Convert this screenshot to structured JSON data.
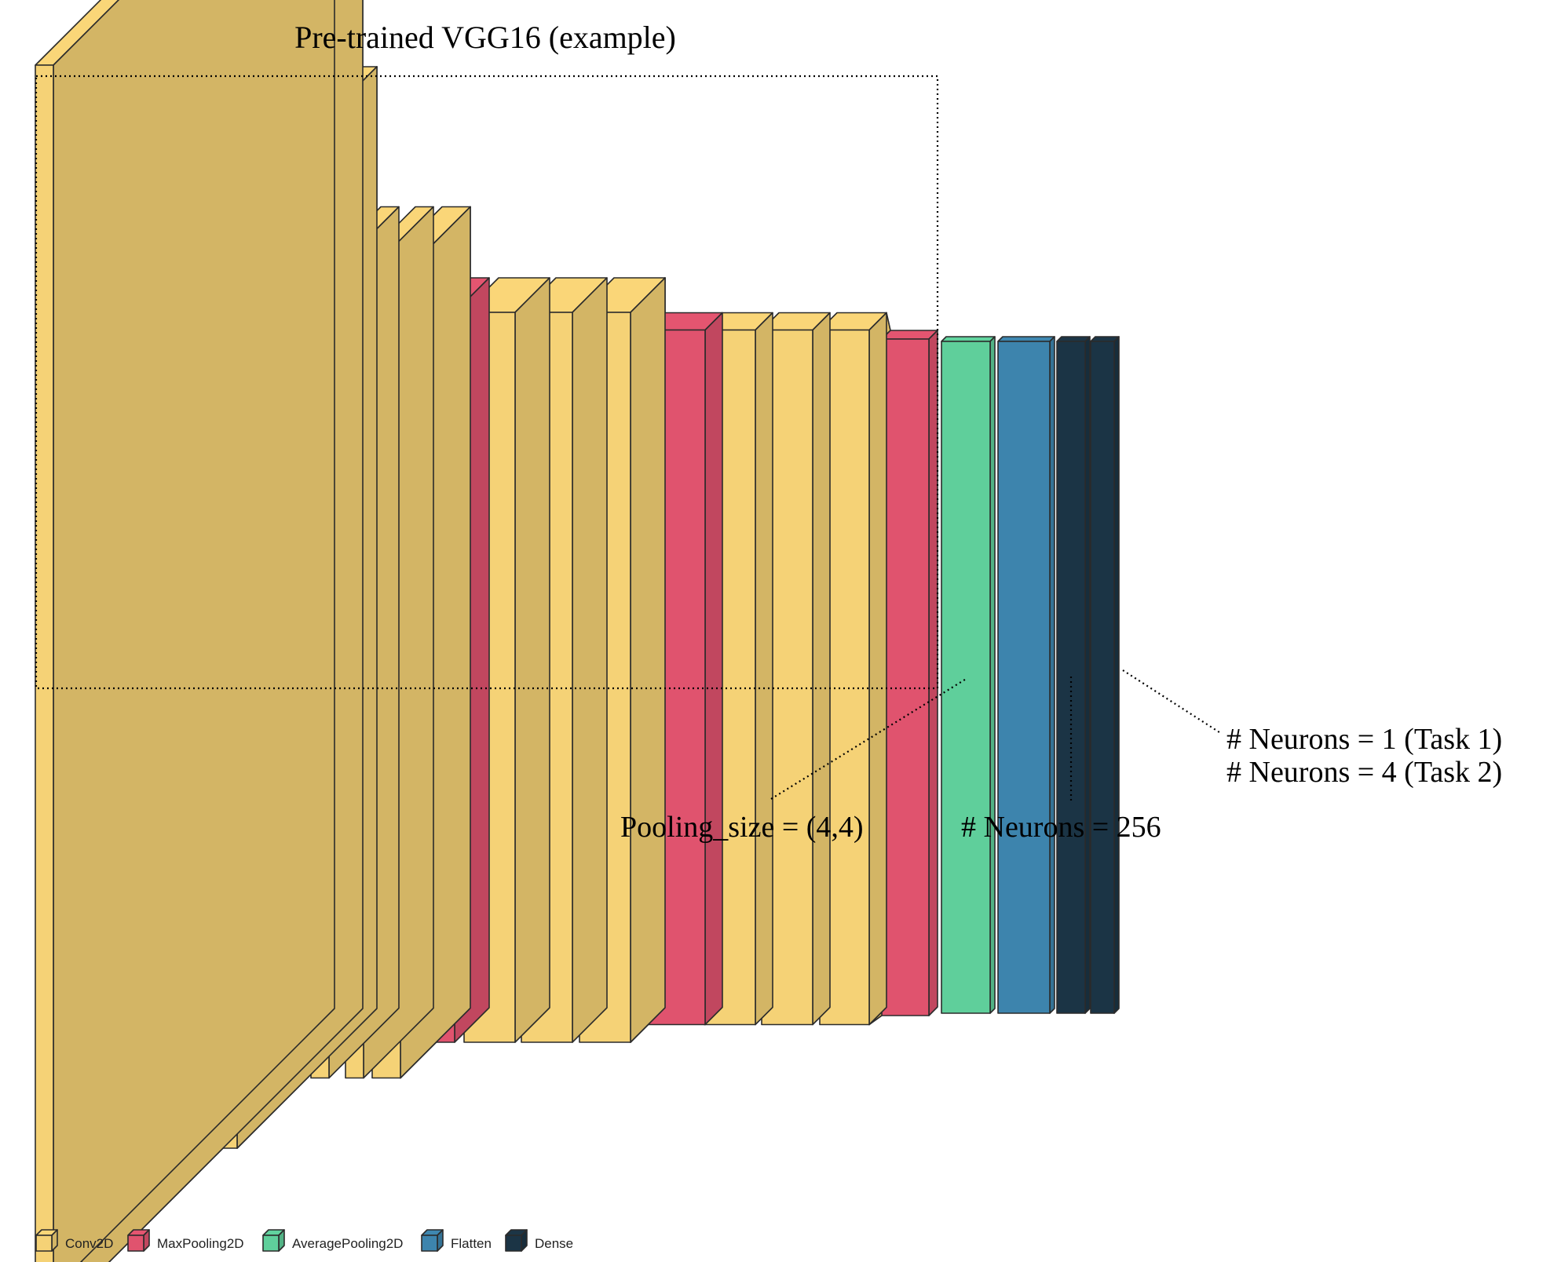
{
  "title": "Pre-trained VGG16 (example)",
  "annotations": {
    "pooling": "Pooling_size = (4,4)",
    "hidden": "# Neurons = 256",
    "output_line1": "# Neurons = 1 (Task 1)",
    "output_line2": "# Neurons = 4 (Task 2)"
  },
  "layer_types": {
    "conv2d": {
      "label": "Conv2D",
      "color": "#f5d276"
    },
    "maxpool": {
      "label": "MaxPooling2D",
      "color": "#e0536e"
    },
    "avgpool": {
      "label": "AveragePooling2D",
      "color": "#5fcf9b"
    },
    "flatten": {
      "label": "Flatten",
      "color": "#3d84ad"
    },
    "dense": {
      "label": "Dense",
      "color": "#1b3445"
    }
  },
  "legend_order": [
    "conv2d",
    "maxpool",
    "avgpool",
    "flatten",
    "dense"
  ],
  "layers": [
    "conv2d",
    "conv2d",
    "maxpool",
    "conv2d",
    "conv2d",
    "maxpool",
    "conv2d",
    "conv2d",
    "conv2d",
    "maxpool",
    "conv2d",
    "conv2d",
    "conv2d",
    "maxpool",
    "conv2d",
    "conv2d",
    "conv2d",
    "maxpool",
    "avgpool",
    "flatten",
    "dense",
    "dense"
  ]
}
